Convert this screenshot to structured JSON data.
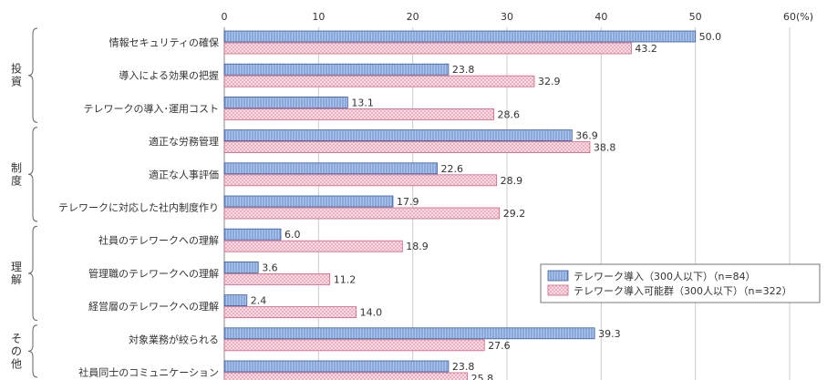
{
  "chart_data": {
    "type": "bar",
    "orientation": "horizontal",
    "unit": "(%)",
    "xlim": [
      0,
      60
    ],
    "xticks": [
      0,
      10,
      20,
      30,
      40,
      50,
      60
    ],
    "grid": true,
    "legend_position": "right",
    "groups": [
      {
        "label": "投\n資",
        "categories": [
          0,
          1,
          2
        ]
      },
      {
        "label": "制\n度",
        "categories": [
          3,
          4,
          5
        ]
      },
      {
        "label": "理\n解",
        "categories": [
          6,
          7,
          8
        ]
      },
      {
        "label": "そ\nの\n他",
        "categories": [
          9,
          10
        ]
      }
    ],
    "categories": [
      "情報セキュリティの確保",
      "導入による効果の把握",
      "テレワークの導入･運用コスト",
      "適正な労務管理",
      "適正な人事評価",
      "テレワークに対応した社内制度作り",
      "社員のテレワークへの理解",
      "管理職のテレワークへの理解",
      "経営層のテレワークへの理解",
      "対象業務が絞られる",
      "社員同士のコミュニケーション"
    ],
    "series": [
      {
        "name": "テレワーク導入（300人以下）（n=84）",
        "color": "#a9c4ea",
        "stroke": "#3a5d9a",
        "values": [
          50.0,
          23.8,
          13.1,
          36.9,
          22.6,
          17.9,
          6.0,
          3.6,
          2.4,
          39.3,
          23.8
        ],
        "labels": [
          "50.0",
          "23.8",
          "13.1",
          "36.9",
          "22.6",
          "17.9",
          "6.0",
          "3.6",
          "2.4",
          "39.3",
          "23.8"
        ]
      },
      {
        "name": "テレワーク導入可能群（300人以下）（n=322）",
        "color": "#f7cfd9",
        "stroke": "#d06480",
        "values": [
          43.2,
          32.9,
          28.6,
          38.8,
          28.9,
          29.2,
          18.9,
          11.2,
          14.0,
          27.6,
          25.8
        ],
        "labels": [
          "43.2",
          "32.9",
          "28.6",
          "38.8",
          "28.9",
          "29.2",
          "18.9",
          "11.2",
          "14.0",
          "27.6",
          "25.8"
        ]
      }
    ]
  }
}
